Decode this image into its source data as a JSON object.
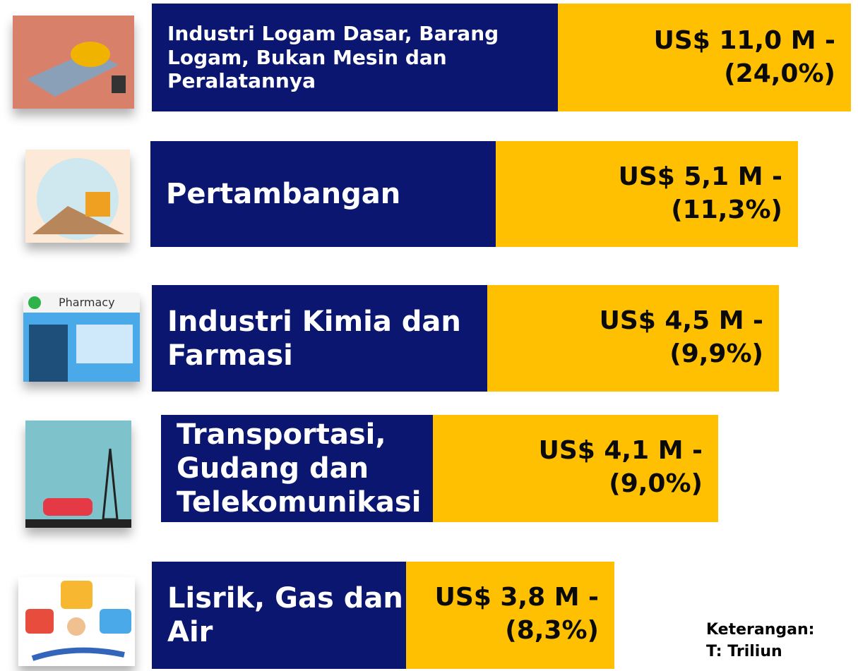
{
  "rows": [
    {
      "label": "Industri Logam Dasar, Barang Logam, Bukan Mesin dan Peralatannya",
      "value": "US$ 11,0 M -",
      "share": "(24,0%)"
    },
    {
      "label": "Pertambangan",
      "value": "US$ 5,1 M -",
      "share": "(11,3%)"
    },
    {
      "label": "Industri Kimia dan Farmasi",
      "value": "US$ 4,5 M -",
      "share": "(9,9%)"
    },
    {
      "label": "Transportasi, Gudang dan Telekomunikasi",
      "value": "US$ 4,1 M -",
      "share": "(9,0%)"
    },
    {
      "label": "Lisrik, Gas dan Air",
      "value": "US$ 3,8 M -",
      "share": "(8,3%)"
    }
  ],
  "note": {
    "title": "Keterangan:",
    "line": "T: Triliun"
  },
  "icon_text": "Pharmacy"
}
